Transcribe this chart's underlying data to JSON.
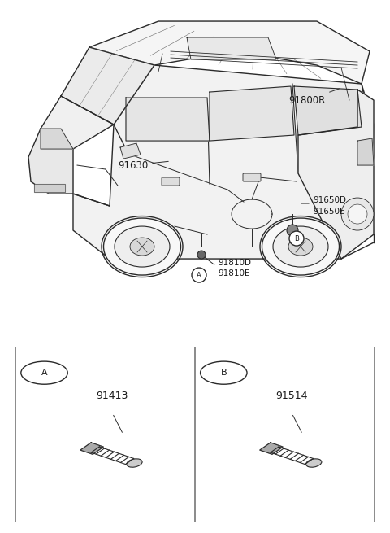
{
  "background_color": "#ffffff",
  "figure_width": 4.8,
  "figure_height": 6.55,
  "dpi": 100,
  "label_91800R": "91800R",
  "label_91630": "91630",
  "label_91650D": "91650D",
  "label_91650E": "91650E",
  "label_91810D": "91810D",
  "label_91810E": "91810E",
  "part_A": "91413",
  "part_B": "91514",
  "line_color": "#2a2a2a",
  "text_color": "#1a1a1a",
  "light_gray": "#cccccc",
  "mid_gray": "#888888",
  "dark_fill": "#444444"
}
